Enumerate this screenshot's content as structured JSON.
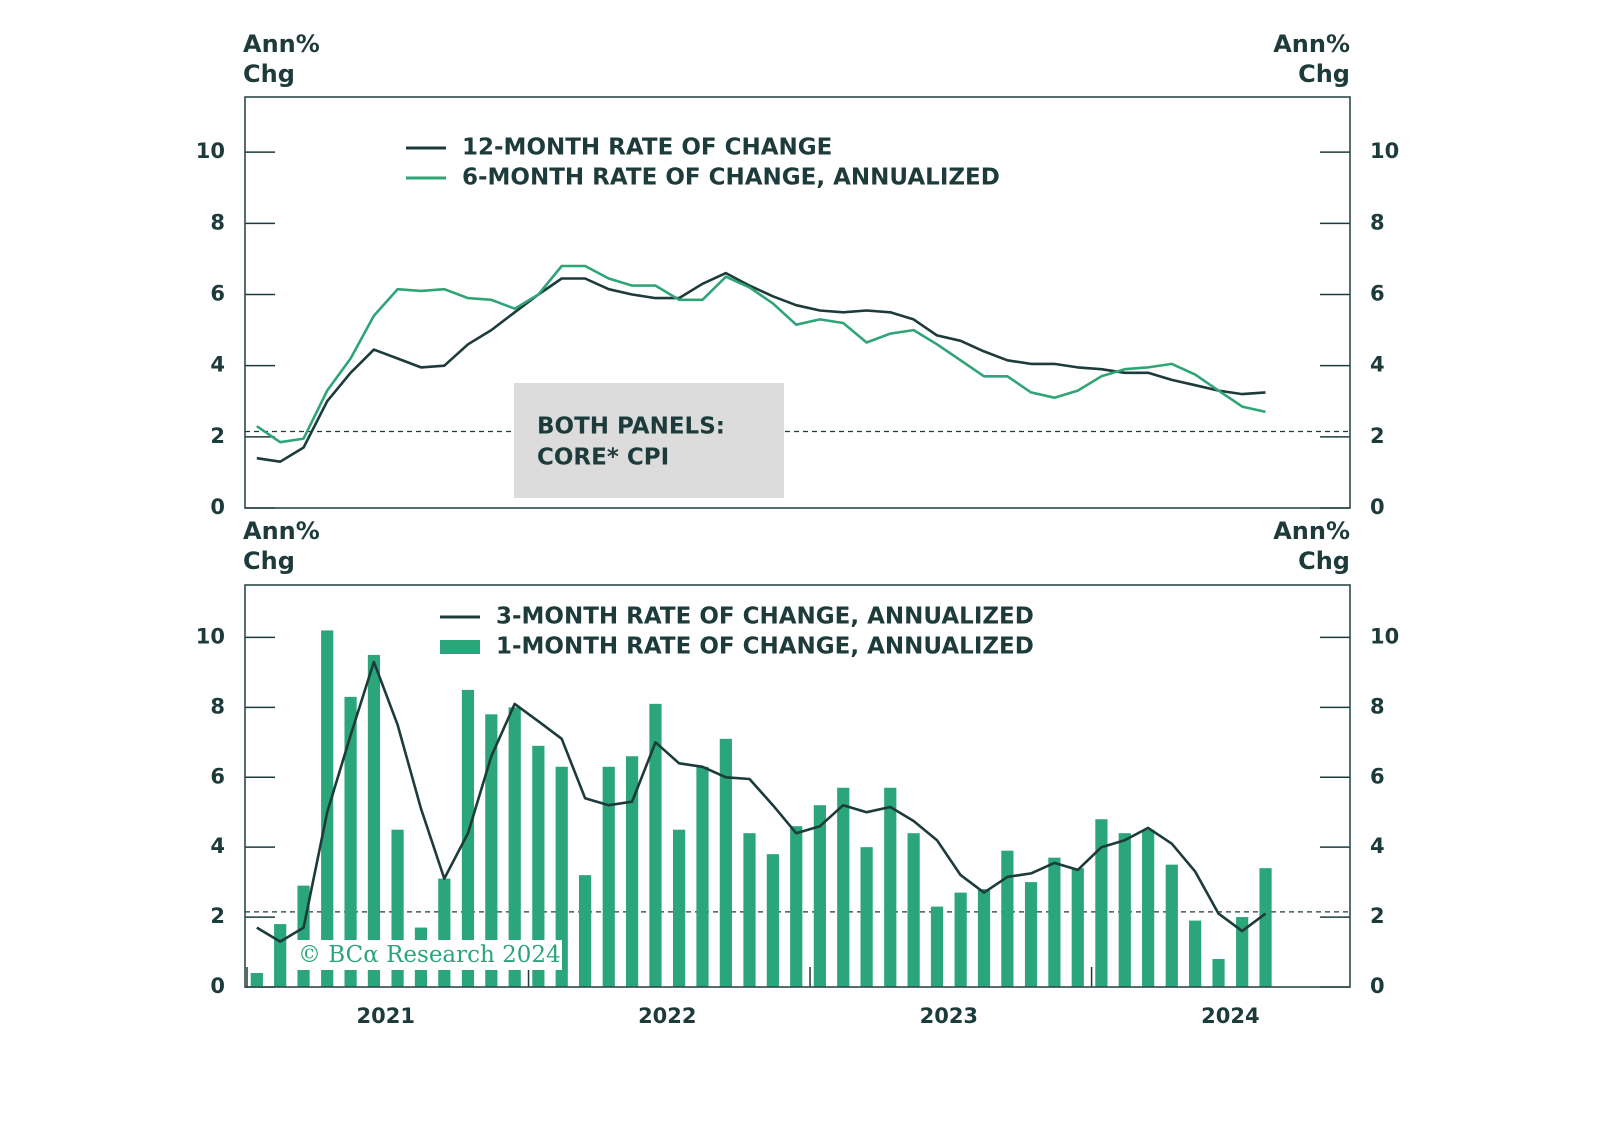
{
  "chart_data": [
    {
      "type": "line",
      "ylabel": [
        "Ann%",
        "Chg"
      ],
      "y2label": [
        "Ann%",
        "Chg"
      ],
      "x": [
        2021.042,
        2021.125,
        2021.208,
        2021.292,
        2021.375,
        2021.458,
        2021.542,
        2021.625,
        2021.708,
        2021.792,
        2021.875,
        2021.958,
        2022.042,
        2022.125,
        2022.208,
        2022.292,
        2022.375,
        2022.458,
        2022.542,
        2022.625,
        2022.708,
        2022.792,
        2022.875,
        2022.958,
        2023.042,
        2023.125,
        2023.208,
        2023.292,
        2023.375,
        2023.458,
        2023.542,
        2023.625,
        2023.708,
        2023.792,
        2023.875,
        2023.958,
        2024.042,
        2024.125,
        2024.208,
        2024.292,
        2024.375,
        2024.458,
        2024.542,
        2024.625
      ],
      "xlim": [
        2021,
        2024.925
      ],
      "ylim": [
        0,
        11.55
      ],
      "yticks": [
        0,
        2,
        4,
        6,
        8,
        10
      ],
      "y2lim": [
        0,
        11.55
      ],
      "y2ticks": [
        0,
        2,
        4,
        6,
        8,
        10
      ],
      "reference_line": 2.15,
      "legend": "upper-center",
      "annotation": [
        "BOTH PANELS:",
        "CORE* CPI"
      ],
      "series": [
        {
          "name": "12-MONTH RATE OF CHANGE",
          "type": "line",
          "color": "#1d3b3b",
          "values": [
            1.4,
            1.3,
            1.7,
            3.0,
            3.8,
            4.45,
            4.2,
            3.95,
            4.0,
            4.6,
            5.0,
            5.5,
            6.0,
            6.45,
            6.45,
            6.15,
            6.0,
            5.9,
            5.9,
            6.3,
            6.6,
            6.25,
            5.95,
            5.7,
            5.55,
            5.5,
            5.55,
            5.5,
            5.3,
            4.85,
            4.7,
            4.4,
            4.15,
            4.05,
            4.05,
            3.95,
            3.9,
            3.8,
            3.8,
            3.6,
            3.45,
            3.3,
            3.2,
            3.25
          ]
        },
        {
          "name": "6-MONTH RATE OF CHANGE, ANNUALIZED",
          "type": "line",
          "color": "#2fa577",
          "values": [
            2.3,
            1.85,
            1.95,
            3.3,
            4.2,
            5.4,
            6.15,
            6.1,
            6.15,
            5.9,
            5.85,
            5.6,
            6.0,
            6.8,
            6.8,
            6.45,
            6.25,
            6.25,
            5.85,
            5.85,
            6.5,
            6.2,
            5.75,
            5.15,
            5.3,
            5.2,
            4.65,
            4.9,
            5.0,
            4.6,
            4.15,
            3.7,
            3.7,
            3.25,
            3.1,
            3.3,
            3.7,
            3.9,
            3.95,
            4.05,
            3.75,
            3.3,
            2.85,
            2.7
          ]
        }
      ]
    },
    {
      "type": "combo",
      "ylabel": [
        "Ann%",
        "Chg"
      ],
      "y2label": [
        "Ann%",
        "Chg"
      ],
      "x": [
        2021.042,
        2021.125,
        2021.208,
        2021.292,
        2021.375,
        2021.458,
        2021.542,
        2021.625,
        2021.708,
        2021.792,
        2021.875,
        2021.958,
        2022.042,
        2022.125,
        2022.208,
        2022.292,
        2022.375,
        2022.458,
        2022.542,
        2022.625,
        2022.708,
        2022.792,
        2022.875,
        2022.958,
        2023.042,
        2023.125,
        2023.208,
        2023.292,
        2023.375,
        2023.458,
        2023.542,
        2023.625,
        2023.708,
        2023.792,
        2023.875,
        2023.958,
        2024.042,
        2024.125,
        2024.208,
        2024.292,
        2024.375,
        2024.458,
        2024.542,
        2024.625
      ],
      "xlim": [
        2021,
        2024.925
      ],
      "xticks": [
        {
          "value": 2021.5,
          "label": "2021"
        },
        {
          "value": 2022.5,
          "label": "2022"
        },
        {
          "value": 2023.5,
          "label": "2023"
        },
        {
          "value": 2024.5,
          "label": "2024"
        }
      ],
      "xminorticks": [
        2021,
        2022,
        2023,
        2024
      ],
      "ylim": [
        0,
        11.5
      ],
      "yticks": [
        0,
        2,
        4,
        6,
        8,
        10
      ],
      "y2lim": [
        0,
        11.5
      ],
      "y2ticks": [
        0,
        2,
        4,
        6,
        8,
        10
      ],
      "reference_line": 2.15,
      "legend": "upper-center",
      "watermark": "© BCα Research 2024",
      "series": [
        {
          "name": "3-MONTH RATE OF CHANGE, ANNUALIZED",
          "type": "line",
          "color": "#1d3b3b",
          "values": [
            1.7,
            1.3,
            1.7,
            5.0,
            7.2,
            9.3,
            7.5,
            5.1,
            3.1,
            4.4,
            6.6,
            8.1,
            7.6,
            7.1,
            5.4,
            5.2,
            5.3,
            7.0,
            6.4,
            6.3,
            6.0,
            5.95,
            5.2,
            4.4,
            4.6,
            5.2,
            5.0,
            5.15,
            4.75,
            4.2,
            3.2,
            2.7,
            3.15,
            3.25,
            3.55,
            3.35,
            4.0,
            4.2,
            4.55,
            4.1,
            3.3,
            2.1,
            1.6,
            2.1
          ]
        },
        {
          "name": "1-MONTH RATE OF CHANGE, ANNUALIZED",
          "type": "bar",
          "color": "#2ba57a",
          "values": [
            0.4,
            1.8,
            2.9,
            10.2,
            8.3,
            9.5,
            4.5,
            1.7,
            3.1,
            8.5,
            7.8,
            8.0,
            6.9,
            6.3,
            3.2,
            6.3,
            6.6,
            8.1,
            4.5,
            6.3,
            7.1,
            4.4,
            3.8,
            4.6,
            5.2,
            5.7,
            4.0,
            5.7,
            4.4,
            2.3,
            2.7,
            2.8,
            3.9,
            3.0,
            3.7,
            3.4,
            4.8,
            4.4,
            4.5,
            3.5,
            1.9,
            0.8,
            2.0,
            3.4
          ]
        }
      ]
    }
  ]
}
